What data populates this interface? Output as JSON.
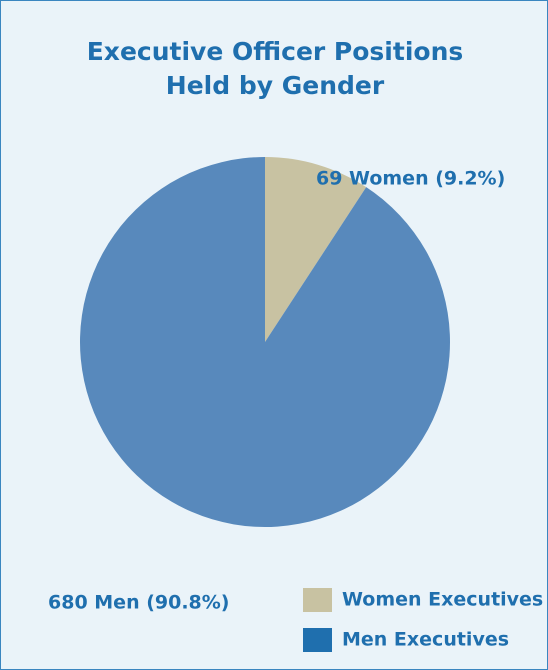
{
  "chart_data": {
    "type": "pie",
    "title": "Executive Officer Positions\nHeld by Gender",
    "categories": [
      "Women Executives",
      "Men Executives"
    ],
    "values": [
      69,
      680
    ],
    "value_labels": [
      "69 Women (9.2%)",
      "680 Men (90.8%)"
    ],
    "colors": [
      "#c8c2a2",
      "#5889bc"
    ],
    "legend_colors": [
      "#c8c2a2",
      "#1f6fae"
    ]
  }
}
